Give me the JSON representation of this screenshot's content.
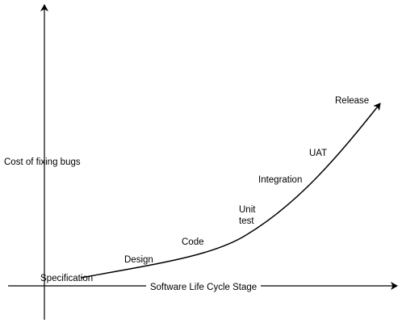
{
  "y_axis_label": "Cost of fixing bugs",
  "x_axis_label": "Software Life Cycle Stage",
  "stages": [
    {
      "lines": [
        "Specification"
      ]
    },
    {
      "lines": [
        "Design"
      ]
    },
    {
      "lines": [
        "Code"
      ]
    },
    {
      "lines": [
        "Unit",
        "test"
      ]
    },
    {
      "lines": [
        "Integration"
      ]
    },
    {
      "lines": [
        "UAT"
      ]
    },
    {
      "lines": [
        "Release"
      ]
    }
  ]
}
